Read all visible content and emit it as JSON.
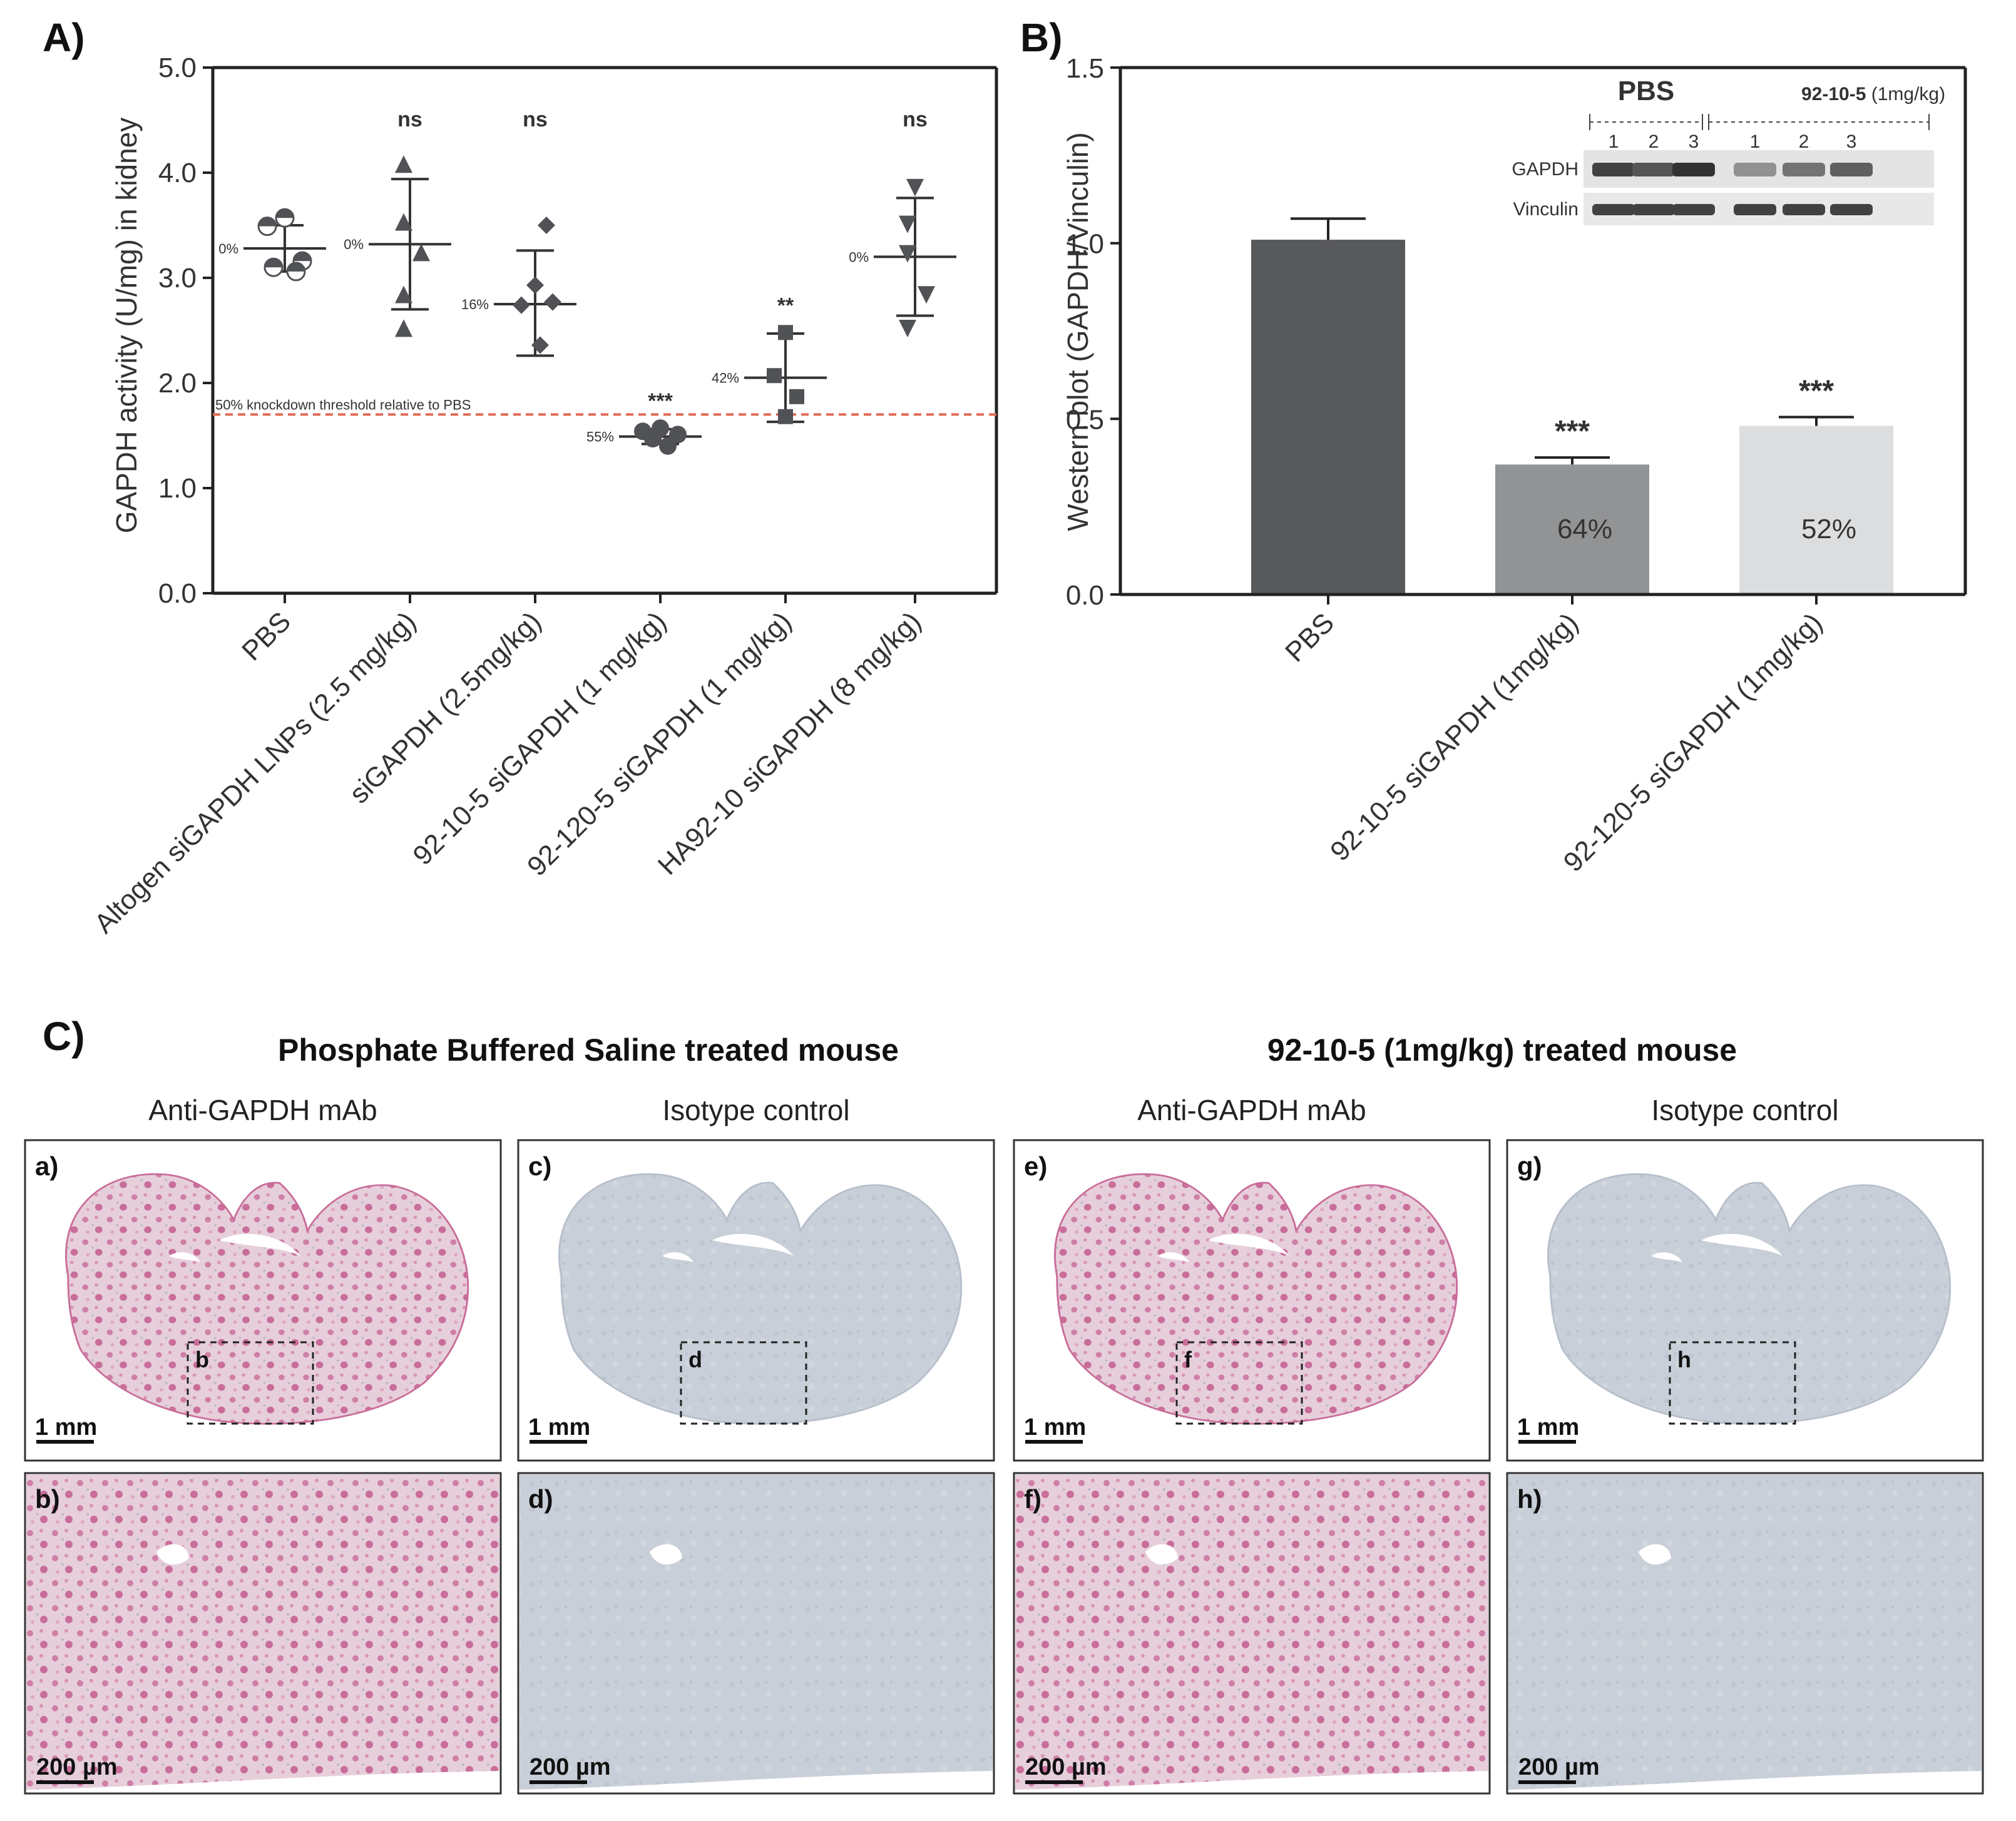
{
  "panel_letters": {
    "a": "A)",
    "b": "B)",
    "c": "C)"
  },
  "chart_data": [
    {
      "type": "scatter",
      "ylabel": "GAPDH activity (U/mg) in kidney",
      "ylim": [
        0,
        5
      ],
      "yticks": [
        "0.0",
        "1.0",
        "2.0",
        "3.0",
        "4.0",
        "5.0"
      ],
      "threshold": {
        "value": 1.7,
        "label": "50% knockdown threshold relative to PBS",
        "color": "#e06a55"
      },
      "groups": [
        {
          "name": "PBS",
          "marker": "circle-half",
          "points": [
            3.57,
            3.49,
            3.16,
            3.1,
            3.06
          ],
          "mean": 3.28,
          "sd": [
            3.06,
            3.5
          ],
          "pct": "0%",
          "sig": ""
        },
        {
          "name": "Altogen siGAPDH LNPs (2.5 mg/kg)",
          "marker": "triangle-up",
          "points": [
            4.07,
            3.52,
            3.23,
            2.83,
            2.51
          ],
          "mean": 3.32,
          "sd": [
            2.7,
            3.94
          ],
          "pct": "0%",
          "sig": "ns"
        },
        {
          "name": "siGAPDH (2.5mg/kg)",
          "marker": "diamond",
          "points": [
            3.5,
            2.93,
            2.77,
            2.74,
            2.36
          ],
          "mean": 2.75,
          "sd": [
            2.26,
            3.26
          ],
          "pct": "16%",
          "sig": "ns"
        },
        {
          "name": "92-10-5 siGAPDH (1 mg/kg)",
          "marker": "circle",
          "points": [
            1.57,
            1.54,
            1.51,
            1.47,
            1.4
          ],
          "mean": 1.49,
          "sd": [
            1.42,
            1.56
          ],
          "pct": "55%",
          "sig": "***"
        },
        {
          "name": "92-120-5 siGAPDH (1 mg/kg)",
          "marker": "square",
          "points": [
            2.48,
            2.07,
            1.87,
            1.68
          ],
          "mean": 2.05,
          "sd": [
            1.63,
            2.47
          ],
          "pct": "42%",
          "sig": "**"
        },
        {
          "name": "HA92-10 siGAPDH (8 mg/kg)",
          "marker": "triangle-down",
          "points": [
            3.87,
            3.52,
            3.24,
            2.85,
            2.53
          ],
          "mean": 3.2,
          "sd": [
            2.64,
            3.76
          ],
          "pct": "0%",
          "sig": "ns"
        }
      ]
    },
    {
      "type": "bar",
      "ylabel": "Western blot (GAPDH/Vinculin)",
      "ylim": [
        0,
        1.5
      ],
      "yticks": [
        "0.0",
        "0.5",
        "1.0",
        "1.5"
      ],
      "categories": [
        "PBS",
        "92-10-5 siGAPDH (1mg/kg)",
        "92-120-5 siGAPDH (1mg/kg)"
      ],
      "values": [
        1.01,
        0.37,
        0.48
      ],
      "errors": [
        0.06,
        0.02,
        0.025
      ],
      "colors": [
        "#58595b",
        "#919395",
        "#dcdddf"
      ],
      "labels": [
        "",
        "64%",
        "52%"
      ],
      "sig": [
        "",
        "***",
        "***"
      ],
      "inset": {
        "group1": "PBS",
        "group2": "92-10-5",
        "group2_note": "(1mg/kg)",
        "lanes": [
          "1",
          "2",
          "3",
          "1",
          "2",
          "3"
        ],
        "rows": [
          "GAPDH",
          "Vinculin"
        ],
        "gapdh_intensity": [
          0.85,
          0.75,
          0.92,
          0.45,
          0.6,
          0.7
        ],
        "vinculin_intensity": [
          0.85,
          0.85,
          0.85,
          0.85,
          0.85,
          0.85
        ]
      }
    }
  ],
  "histology": {
    "header_left": "Phosphate Buffered Saline treated mouse",
    "header_right": "92-10-5 (1mg/kg) treated mouse",
    "columns": [
      {
        "stain": "Anti-GAPDH mAb",
        "top": "a)",
        "bottom": "b)",
        "box": "b",
        "color": "pink"
      },
      {
        "stain": "Isotype control",
        "top": "c)",
        "bottom": "d)",
        "box": "d",
        "color": "gray"
      },
      {
        "stain": "Anti-GAPDH mAb",
        "top": "e)",
        "bottom": "f)",
        "box": "f",
        "color": "pink"
      },
      {
        "stain": "Isotype control",
        "top": "g)",
        "bottom": "h)",
        "box": "h",
        "color": "gray"
      }
    ],
    "scale_top": "1 mm",
    "scale_bottom": "200 µm"
  }
}
